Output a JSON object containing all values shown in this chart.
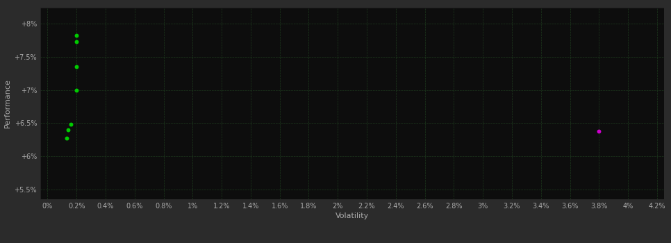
{
  "background_color": "#2b2b2b",
  "plot_bg_color": "#0d0d0d",
  "grid_color": "#1e3a1e",
  "text_color": "#aaaaaa",
  "xlabel": "Volatility",
  "ylabel": "Performance",
  "x_ticks": [
    0.0,
    0.002,
    0.004,
    0.006,
    0.008,
    0.01,
    0.012,
    0.014,
    0.016,
    0.018,
    0.02,
    0.022,
    0.024,
    0.026,
    0.028,
    0.03,
    0.032,
    0.034,
    0.036,
    0.038,
    0.04,
    0.042
  ],
  "x_tick_labels": [
    "0%",
    "0.2%",
    "0.4%",
    "0.6%",
    "0.8%",
    "1%",
    "1.2%",
    "1.4%",
    "1.6%",
    "1.8%",
    "2%",
    "2.2%",
    "2.4%",
    "2.6%",
    "2.8%",
    "3%",
    "3.2%",
    "3.4%",
    "3.6%",
    "3.8%",
    "4%",
    "4.2%"
  ],
  "y_ticks": [
    0.055,
    0.06,
    0.065,
    0.07,
    0.075,
    0.08
  ],
  "y_tick_labels": [
    "+5.5%",
    "+6%",
    "+6.5%",
    "+7%",
    "+7.5%",
    "+8%"
  ],
  "xlim": [
    -0.0005,
    0.0425
  ],
  "ylim": [
    0.0535,
    0.0825
  ],
  "green_points": [
    [
      0.002,
      0.0782
    ],
    [
      0.002,
      0.0773
    ],
    [
      0.002,
      0.0735
    ],
    [
      0.002,
      0.07
    ],
    [
      0.0016,
      0.0648
    ],
    [
      0.0014,
      0.064
    ],
    [
      0.0013,
      0.0627
    ]
  ],
  "magenta_points": [
    [
      0.038,
      0.0638
    ]
  ],
  "point_size": 18,
  "font_size_ticks": 7,
  "font_size_labels": 8
}
